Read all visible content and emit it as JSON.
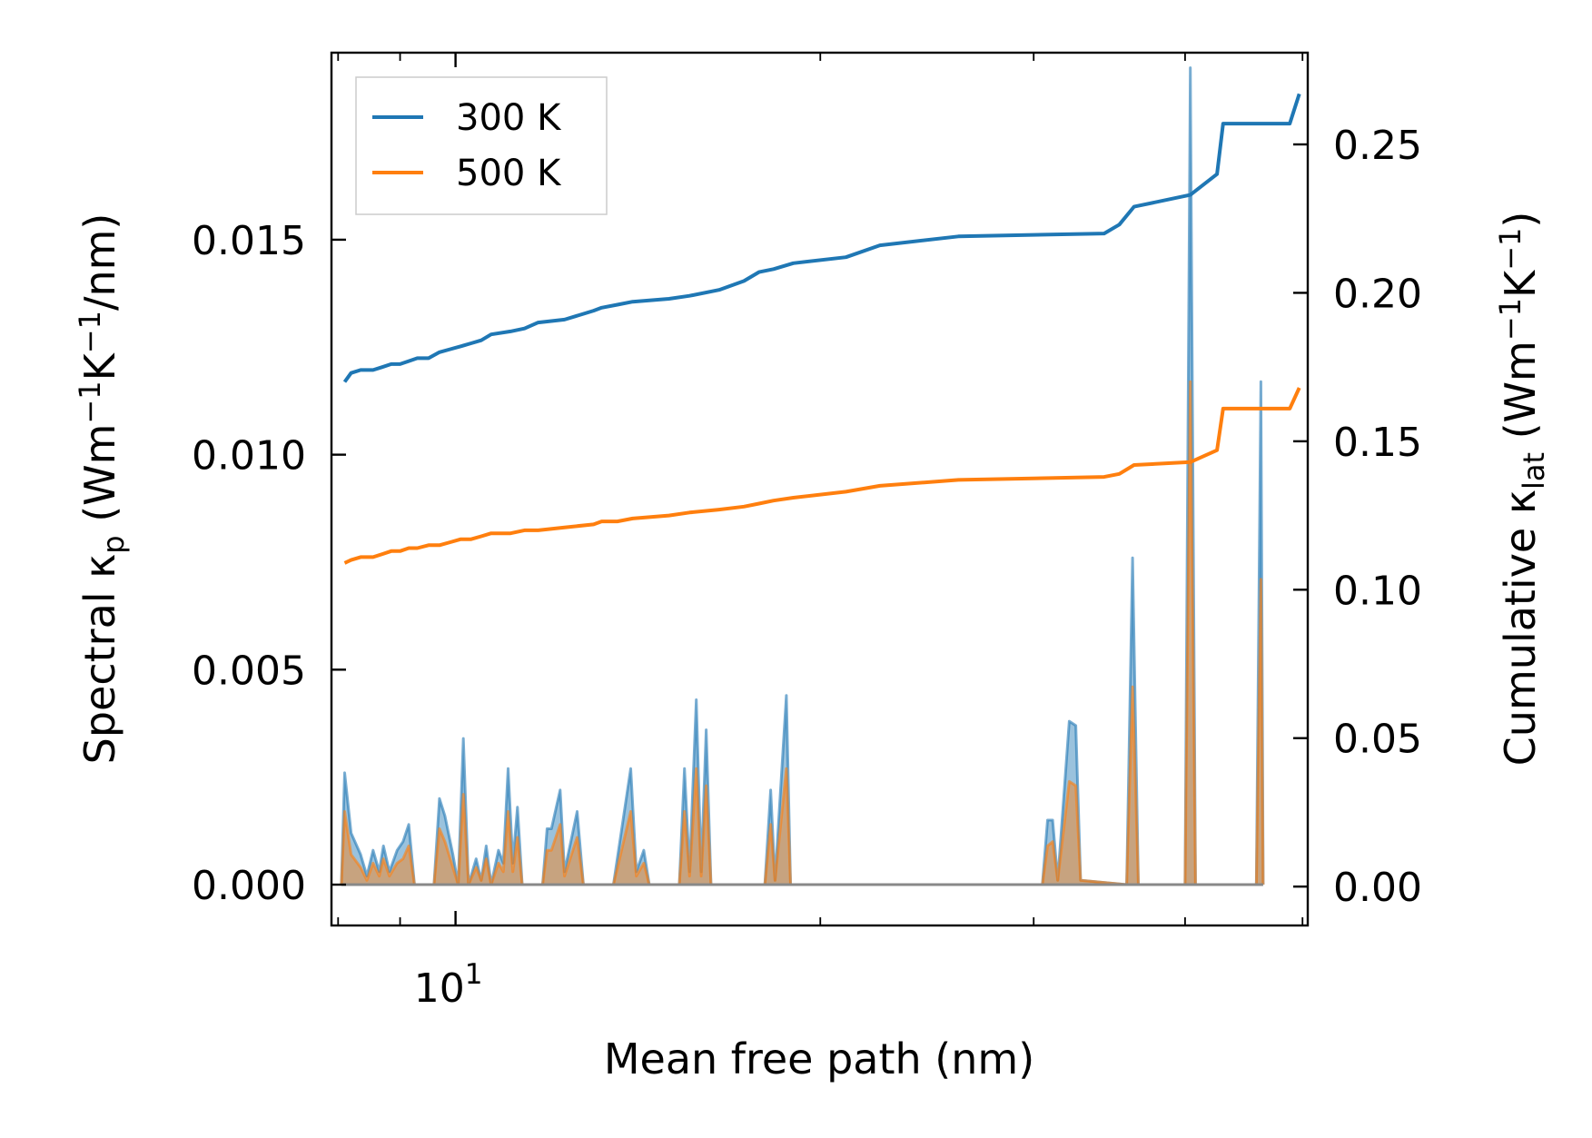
{
  "chart_data": {
    "type": "line",
    "xscale": "log",
    "xlim": [
      7.9,
      50.5
    ],
    "xlabel": "Mean free path (nm)",
    "xticks": [
      {
        "value": 10,
        "base": "10",
        "exp": "1"
      }
    ],
    "y_left": {
      "label_parts": [
        "Spectral κ",
        "p",
        " (Wm",
        "−1",
        "K",
        "−1",
        "/nm)"
      ],
      "lim": [
        -0.00095,
        0.01935
      ],
      "ticks": [
        0,
        0.005,
        0.01,
        0.015
      ],
      "tick_labels": [
        "0.000",
        "0.005",
        "0.010",
        "0.015"
      ]
    },
    "y_right": {
      "label_parts": [
        "Cumulative κ",
        "lat",
        " (Wm",
        "−1",
        "K",
        "−1",
        ")"
      ],
      "lim": [
        -0.0131,
        0.2809
      ],
      "ticks": [
        0,
        0.05,
        0.1,
        0.15,
        0.2,
        0.25
      ],
      "tick_labels": [
        "0.00",
        "0.05",
        "0.10",
        "0.15",
        "0.20",
        "0.25"
      ]
    },
    "colors": {
      "300 K": "#1f77b4",
      "500 K": "#ff7f0e"
    },
    "legend": {
      "position": "upper-left",
      "entries": [
        "300 K",
        "500 K"
      ]
    },
    "cumulative_series": [
      {
        "name": "300 K",
        "axis": "right",
        "points": [
          [
            8.1,
            0.17
          ],
          [
            8.2,
            0.173
          ],
          [
            8.35,
            0.174
          ],
          [
            8.55,
            0.174
          ],
          [
            8.7,
            0.175
          ],
          [
            8.85,
            0.176
          ],
          [
            9.0,
            0.176
          ],
          [
            9.15,
            0.177
          ],
          [
            9.3,
            0.178
          ],
          [
            9.5,
            0.178
          ],
          [
            9.7,
            0.18
          ],
          [
            9.9,
            0.181
          ],
          [
            10.1,
            0.182
          ],
          [
            10.3,
            0.183
          ],
          [
            10.5,
            0.184
          ],
          [
            10.7,
            0.186
          ],
          [
            11.1,
            0.187
          ],
          [
            11.4,
            0.188
          ],
          [
            11.7,
            0.19
          ],
          [
            12.3,
            0.191
          ],
          [
            13.0,
            0.194
          ],
          [
            13.2,
            0.195
          ],
          [
            13.6,
            0.196
          ],
          [
            14.0,
            0.197
          ],
          [
            15.0,
            0.198
          ],
          [
            15.6,
            0.199
          ],
          [
            16.5,
            0.201
          ],
          [
            17.3,
            0.204
          ],
          [
            17.8,
            0.207
          ],
          [
            18.3,
            0.208
          ],
          [
            19.0,
            0.21
          ],
          [
            21.0,
            0.212
          ],
          [
            22.4,
            0.216
          ],
          [
            26.0,
            0.219
          ],
          [
            34.3,
            0.22
          ],
          [
            35.3,
            0.223
          ],
          [
            36.3,
            0.229
          ],
          [
            40.4,
            0.233
          ],
          [
            42.5,
            0.24
          ],
          [
            43.0,
            0.257
          ],
          [
            48.8,
            0.257
          ],
          [
            49.7,
            0.267
          ]
        ]
      },
      {
        "name": "500 K",
        "axis": "right",
        "points": [
          [
            8.1,
            0.109
          ],
          [
            8.2,
            0.11
          ],
          [
            8.35,
            0.111
          ],
          [
            8.55,
            0.111
          ],
          [
            8.7,
            0.112
          ],
          [
            8.85,
            0.113
          ],
          [
            9.0,
            0.113
          ],
          [
            9.15,
            0.114
          ],
          [
            9.3,
            0.114
          ],
          [
            9.5,
            0.115
          ],
          [
            9.7,
            0.115
          ],
          [
            9.9,
            0.116
          ],
          [
            10.1,
            0.117
          ],
          [
            10.3,
            0.117
          ],
          [
            10.5,
            0.118
          ],
          [
            10.7,
            0.119
          ],
          [
            11.1,
            0.119
          ],
          [
            11.4,
            0.12
          ],
          [
            11.7,
            0.12
          ],
          [
            12.3,
            0.121
          ],
          [
            13.0,
            0.122
          ],
          [
            13.2,
            0.123
          ],
          [
            13.6,
            0.123
          ],
          [
            14.0,
            0.124
          ],
          [
            15.0,
            0.125
          ],
          [
            15.6,
            0.126
          ],
          [
            16.5,
            0.127
          ],
          [
            17.3,
            0.128
          ],
          [
            17.8,
            0.129
          ],
          [
            18.3,
            0.13
          ],
          [
            19.0,
            0.131
          ],
          [
            21.0,
            0.133
          ],
          [
            22.4,
            0.135
          ],
          [
            26.0,
            0.137
          ],
          [
            34.3,
            0.138
          ],
          [
            35.3,
            0.139
          ],
          [
            36.3,
            0.142
          ],
          [
            40.4,
            0.143
          ],
          [
            42.5,
            0.147
          ],
          [
            43.0,
            0.161
          ],
          [
            48.8,
            0.161
          ],
          [
            49.7,
            0.168
          ]
        ]
      }
    ],
    "spectral_series": [
      {
        "name": "300 K",
        "axis": "left",
        "points": [
          [
            8.05,
            0
          ],
          [
            8.1,
            0.0026
          ],
          [
            8.2,
            0.0012
          ],
          [
            8.35,
            0.0007
          ],
          [
            8.45,
            0.0002
          ],
          [
            8.55,
            0.0008
          ],
          [
            8.65,
            0.0003
          ],
          [
            8.72,
            0.0009
          ],
          [
            8.82,
            0.0003
          ],
          [
            8.95,
            0.0008
          ],
          [
            9.05,
            0.001
          ],
          [
            9.15,
            0.0014
          ],
          [
            9.25,
            0
          ],
          [
            9.6,
            0
          ],
          [
            9.7,
            0.002
          ],
          [
            9.8,
            0.0016
          ],
          [
            9.95,
            0.0007
          ],
          [
            10.05,
            0
          ],
          [
            10.15,
            0.0034
          ],
          [
            10.25,
            0
          ],
          [
            10.4,
            0.0006
          ],
          [
            10.5,
            0.0001
          ],
          [
            10.6,
            0.0009
          ],
          [
            10.7,
            0
          ],
          [
            10.85,
            0.0008
          ],
          [
            10.95,
            0.0005
          ],
          [
            11.05,
            0.0027
          ],
          [
            11.15,
            0.0005
          ],
          [
            11.25,
            0.0018
          ],
          [
            11.35,
            0
          ],
          [
            11.8,
            0
          ],
          [
            11.9,
            0.0013
          ],
          [
            12.0,
            0.0013
          ],
          [
            12.2,
            0.0022
          ],
          [
            12.3,
            0.0003
          ],
          [
            12.6,
            0.0017
          ],
          [
            12.75,
            0
          ],
          [
            13.5,
            0
          ],
          [
            13.95,
            0.0027
          ],
          [
            14.1,
            0.0003
          ],
          [
            14.3,
            0.0008
          ],
          [
            14.45,
            0
          ],
          [
            15.3,
            0
          ],
          [
            15.45,
            0.0027
          ],
          [
            15.6,
            0.0003
          ],
          [
            15.8,
            0.0043
          ],
          [
            15.95,
            0.0003
          ],
          [
            16.1,
            0.0036
          ],
          [
            16.25,
            0
          ],
          [
            18.0,
            0
          ],
          [
            18.2,
            0.0022
          ],
          [
            18.35,
            0.0001
          ],
          [
            18.75,
            0.0044
          ],
          [
            18.9,
            0
          ],
          [
            30.5,
            0
          ],
          [
            30.8,
            0.0015
          ],
          [
            31.1,
            0.0015
          ],
          [
            31.4,
            0.0001
          ],
          [
            32.1,
            0.0038
          ],
          [
            32.5,
            0.0037
          ],
          [
            32.8,
            0.0001
          ],
          [
            35.8,
            0
          ],
          [
            36.2,
            0.0076
          ],
          [
            36.6,
            0
          ],
          [
            40.0,
            0
          ],
          [
            40.4,
            0.019
          ],
          [
            40.8,
            0
          ],
          [
            45.8,
            0
          ],
          [
            46.2,
            0.0117
          ],
          [
            46.4,
            0
          ]
        ]
      },
      {
        "name": "500 K",
        "axis": "left",
        "points": [
          [
            8.05,
            0
          ],
          [
            8.1,
            0.0017
          ],
          [
            8.2,
            0.0007
          ],
          [
            8.35,
            0.0004
          ],
          [
            8.45,
            0.0001
          ],
          [
            8.55,
            0.0005
          ],
          [
            8.65,
            0.0002
          ],
          [
            8.72,
            0.0006
          ],
          [
            8.82,
            0.0002
          ],
          [
            8.95,
            0.0005
          ],
          [
            9.05,
            0.0006
          ],
          [
            9.15,
            0.0009
          ],
          [
            9.25,
            0
          ],
          [
            9.6,
            0
          ],
          [
            9.7,
            0.0013
          ],
          [
            9.8,
            0.001
          ],
          [
            9.95,
            0.0004
          ],
          [
            10.05,
            0
          ],
          [
            10.15,
            0.0021
          ],
          [
            10.25,
            0
          ],
          [
            10.4,
            0.0004
          ],
          [
            10.5,
            0.0001
          ],
          [
            10.6,
            0.0006
          ],
          [
            10.7,
            0
          ],
          [
            10.85,
            0.0005
          ],
          [
            10.95,
            0.0003
          ],
          [
            11.05,
            0.0017
          ],
          [
            11.15,
            0.0003
          ],
          [
            11.25,
            0.0011
          ],
          [
            11.35,
            0
          ],
          [
            11.8,
            0
          ],
          [
            11.9,
            0.0008
          ],
          [
            12.0,
            0.0008
          ],
          [
            12.2,
            0.0014
          ],
          [
            12.3,
            0.0002
          ],
          [
            12.6,
            0.0011
          ],
          [
            12.75,
            0
          ],
          [
            13.5,
            0
          ],
          [
            13.95,
            0.0017
          ],
          [
            14.1,
            0.0002
          ],
          [
            14.3,
            0.0005
          ],
          [
            14.45,
            0
          ],
          [
            15.3,
            0
          ],
          [
            15.45,
            0.0017
          ],
          [
            15.6,
            0.0002
          ],
          [
            15.8,
            0.0027
          ],
          [
            15.95,
            0.0002
          ],
          [
            16.1,
            0.0023
          ],
          [
            16.25,
            0
          ],
          [
            18.0,
            0
          ],
          [
            18.2,
            0.0014
          ],
          [
            18.35,
            0.0001
          ],
          [
            18.75,
            0.0027
          ],
          [
            18.9,
            0
          ],
          [
            30.5,
            0
          ],
          [
            30.8,
            0.0009
          ],
          [
            31.1,
            0.001
          ],
          [
            31.4,
            0.0001
          ],
          [
            32.1,
            0.0024
          ],
          [
            32.5,
            0.0023
          ],
          [
            32.8,
            0.0001
          ],
          [
            35.8,
            0
          ],
          [
            36.2,
            0.0046
          ],
          [
            36.6,
            0
          ],
          [
            40.0,
            0
          ],
          [
            40.4,
            0.0117
          ],
          [
            40.8,
            0
          ],
          [
            45.8,
            0
          ],
          [
            46.2,
            0.0071
          ],
          [
            46.4,
            0
          ]
        ]
      }
    ]
  }
}
